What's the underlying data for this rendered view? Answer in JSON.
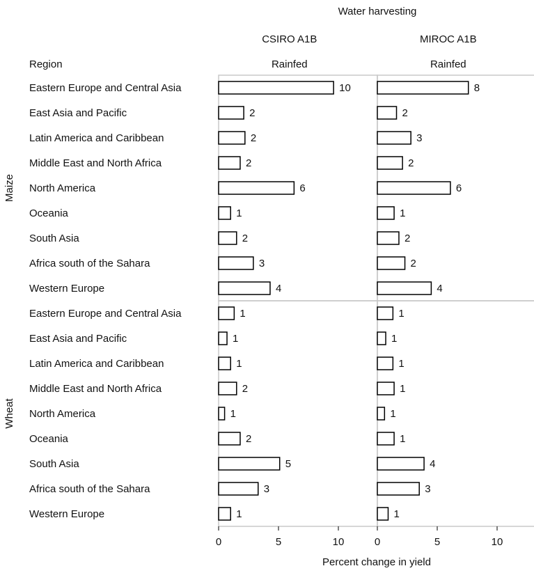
{
  "chart_data": {
    "type": "bar",
    "orientation": "horizontal",
    "header": "Water harvesting",
    "row_header": "Region",
    "xlabel": "Percent change in yield",
    "xlim": [
      0,
      13
    ],
    "xticks": [
      0,
      5,
      10
    ],
    "panels": [
      {
        "model": "CSIRO A1B",
        "condition": "Rainfed"
      },
      {
        "model": "MIROC A1B",
        "condition": "Rainfed"
      }
    ],
    "groups": [
      {
        "name": "Maize",
        "categories": [
          "Eastern Europe and Central Asia",
          "East Asia and Pacific",
          "Latin America and Caribbean",
          "Middle East and North Africa",
          "North America",
          "Oceania",
          "South Asia",
          "Africa south of the Sahara",
          "Western Europe"
        ],
        "series": [
          {
            "panel": 0,
            "values": [
              9.6,
              2.1,
              2.2,
              1.8,
              6.3,
              1.0,
              1.5,
              2.9,
              4.3
            ],
            "labels": [
              "10",
              "2",
              "2",
              "2",
              "6",
              "1",
              "2",
              "3",
              "4"
            ]
          },
          {
            "panel": 1,
            "values": [
              7.6,
              1.6,
              2.8,
              2.1,
              6.1,
              1.4,
              1.8,
              2.3,
              4.5
            ],
            "labels": [
              "8",
              "2",
              "3",
              "2",
              "6",
              "1",
              "2",
              "2",
              "4"
            ]
          }
        ]
      },
      {
        "name": "Wheat",
        "categories": [
          "Eastern Europe and Central Asia",
          "East Asia and Pacific",
          "Latin America and Caribbean",
          "Middle East and North Africa",
          "North America",
          "Oceania",
          "South Asia",
          "Africa south of the Sahara",
          "Western Europe"
        ],
        "series": [
          {
            "panel": 0,
            "values": [
              1.3,
              0.7,
              1.0,
              1.5,
              0.5,
              1.8,
              5.1,
              3.3,
              1.0
            ],
            "labels": [
              "1",
              "1",
              "1",
              "2",
              "1",
              "2",
              "5",
              "3",
              "1"
            ]
          },
          {
            "panel": 1,
            "values": [
              1.3,
              0.7,
              1.3,
              1.4,
              0.6,
              1.4,
              3.9,
              3.5,
              0.9
            ],
            "labels": [
              "1",
              "1",
              "1",
              "1",
              "1",
              "1",
              "4",
              "3",
              "1"
            ]
          }
        ]
      }
    ]
  }
}
